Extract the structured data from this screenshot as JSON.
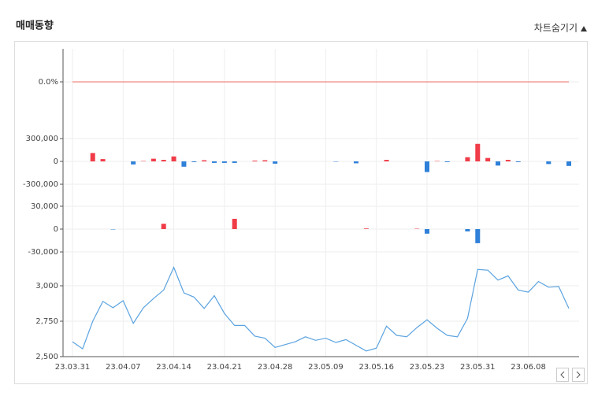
{
  "header": {
    "title": "매매동향",
    "toggle": "차트숨기기"
  },
  "chart_data": [
    {
      "type": "line",
      "color": "#f08a80",
      "ylim": [
        -1,
        1
      ],
      "yticks": [
        {
          "value": 0,
          "label": "0.0%"
        }
      ],
      "values": [
        0,
        0,
        0,
        0,
        0,
        0,
        0,
        0,
        0,
        0,
        0,
        0,
        0,
        0,
        0,
        0,
        0,
        0,
        0,
        0,
        0,
        0,
        0,
        0,
        0,
        0,
        0,
        0,
        0,
        0,
        0,
        0,
        0,
        0,
        0,
        0,
        0,
        0,
        0,
        0,
        0,
        0,
        0,
        0,
        0,
        0,
        0,
        0,
        0,
        0
      ]
    },
    {
      "type": "bar",
      "up_color": "#f03c48",
      "down_color": "#2f80d8",
      "ylim": [
        -400000,
        400000
      ],
      "yticks": [
        {
          "value": 300000,
          "label": "300,000"
        },
        0,
        {
          "value": -300000,
          "label": "-300,000"
        }
      ],
      "values": [
        0,
        0,
        110000,
        30000,
        0,
        0,
        -40000,
        5000,
        35000,
        20000,
        65000,
        -70000,
        -10000,
        15000,
        -20000,
        -20000,
        -20000,
        0,
        10000,
        15000,
        -30000,
        0,
        0,
        0,
        0,
        0,
        -5000,
        0,
        -25000,
        0,
        0,
        20000,
        0,
        0,
        0,
        -140000,
        5000,
        -10000,
        0,
        55000,
        230000,
        45000,
        -55000,
        20000,
        -10000,
        0,
        0,
        -35000,
        0,
        -60000
      ]
    },
    {
      "type": "bar",
      "up_color": "#f03c48",
      "down_color": "#2f80d8",
      "ylim": [
        -40000,
        40000
      ],
      "yticks": [
        {
          "value": 30000,
          "label": "30,000"
        },
        0,
        {
          "value": -30000,
          "label": "-30,000"
        }
      ],
      "values": [
        0,
        0,
        0,
        0,
        -500,
        0,
        0,
        0,
        0,
        7000,
        0,
        0,
        0,
        0,
        0,
        0,
        13500,
        0,
        0,
        0,
        0,
        0,
        0,
        0,
        0,
        0,
        0,
        0,
        0,
        800,
        0,
        0,
        0,
        0,
        500,
        -6000,
        0,
        0,
        0,
        -3000,
        -18500,
        0,
        0,
        0,
        0,
        0,
        0,
        0,
        0,
        0
      ]
    },
    {
      "type": "line",
      "color": "#5ba3e0",
      "ylim": [
        2500,
        3150
      ],
      "yticks": [
        {
          "value": 3000,
          "label": "3,000"
        },
        {
          "value": 2750,
          "label": "2,750"
        },
        {
          "value": 2500,
          "label": "2,500"
        }
      ],
      "categories": [
        "23.03.31",
        null,
        null,
        null,
        null,
        "23.04.07",
        null,
        null,
        null,
        null,
        "23.04.14",
        null,
        null,
        null,
        null,
        "23.04.21",
        null,
        null,
        null,
        null,
        "23.04.28",
        null,
        null,
        null,
        null,
        "23.05.09",
        null,
        null,
        null,
        null,
        "23.05.16",
        null,
        null,
        null,
        null,
        "23.05.23",
        null,
        null,
        null,
        null,
        "23.05.31",
        null,
        null,
        null,
        null,
        "23.06.08",
        null,
        null,
        null,
        null
      ],
      "values": [
        2605,
        2555,
        2750,
        2890,
        2845,
        2895,
        2735,
        2845,
        2910,
        2970,
        3130,
        2950,
        2920,
        2840,
        2930,
        2805,
        2720,
        2720,
        2645,
        2630,
        2565,
        2585,
        2605,
        2640,
        2615,
        2630,
        2600,
        2620,
        2580,
        2540,
        2560,
        2715,
        2650,
        2640,
        2705,
        2760,
        2700,
        2650,
        2640,
        2770,
        3115,
        3110,
        3040,
        3070,
        2970,
        2955,
        3030,
        2990,
        2995,
        2840
      ]
    }
  ]
}
